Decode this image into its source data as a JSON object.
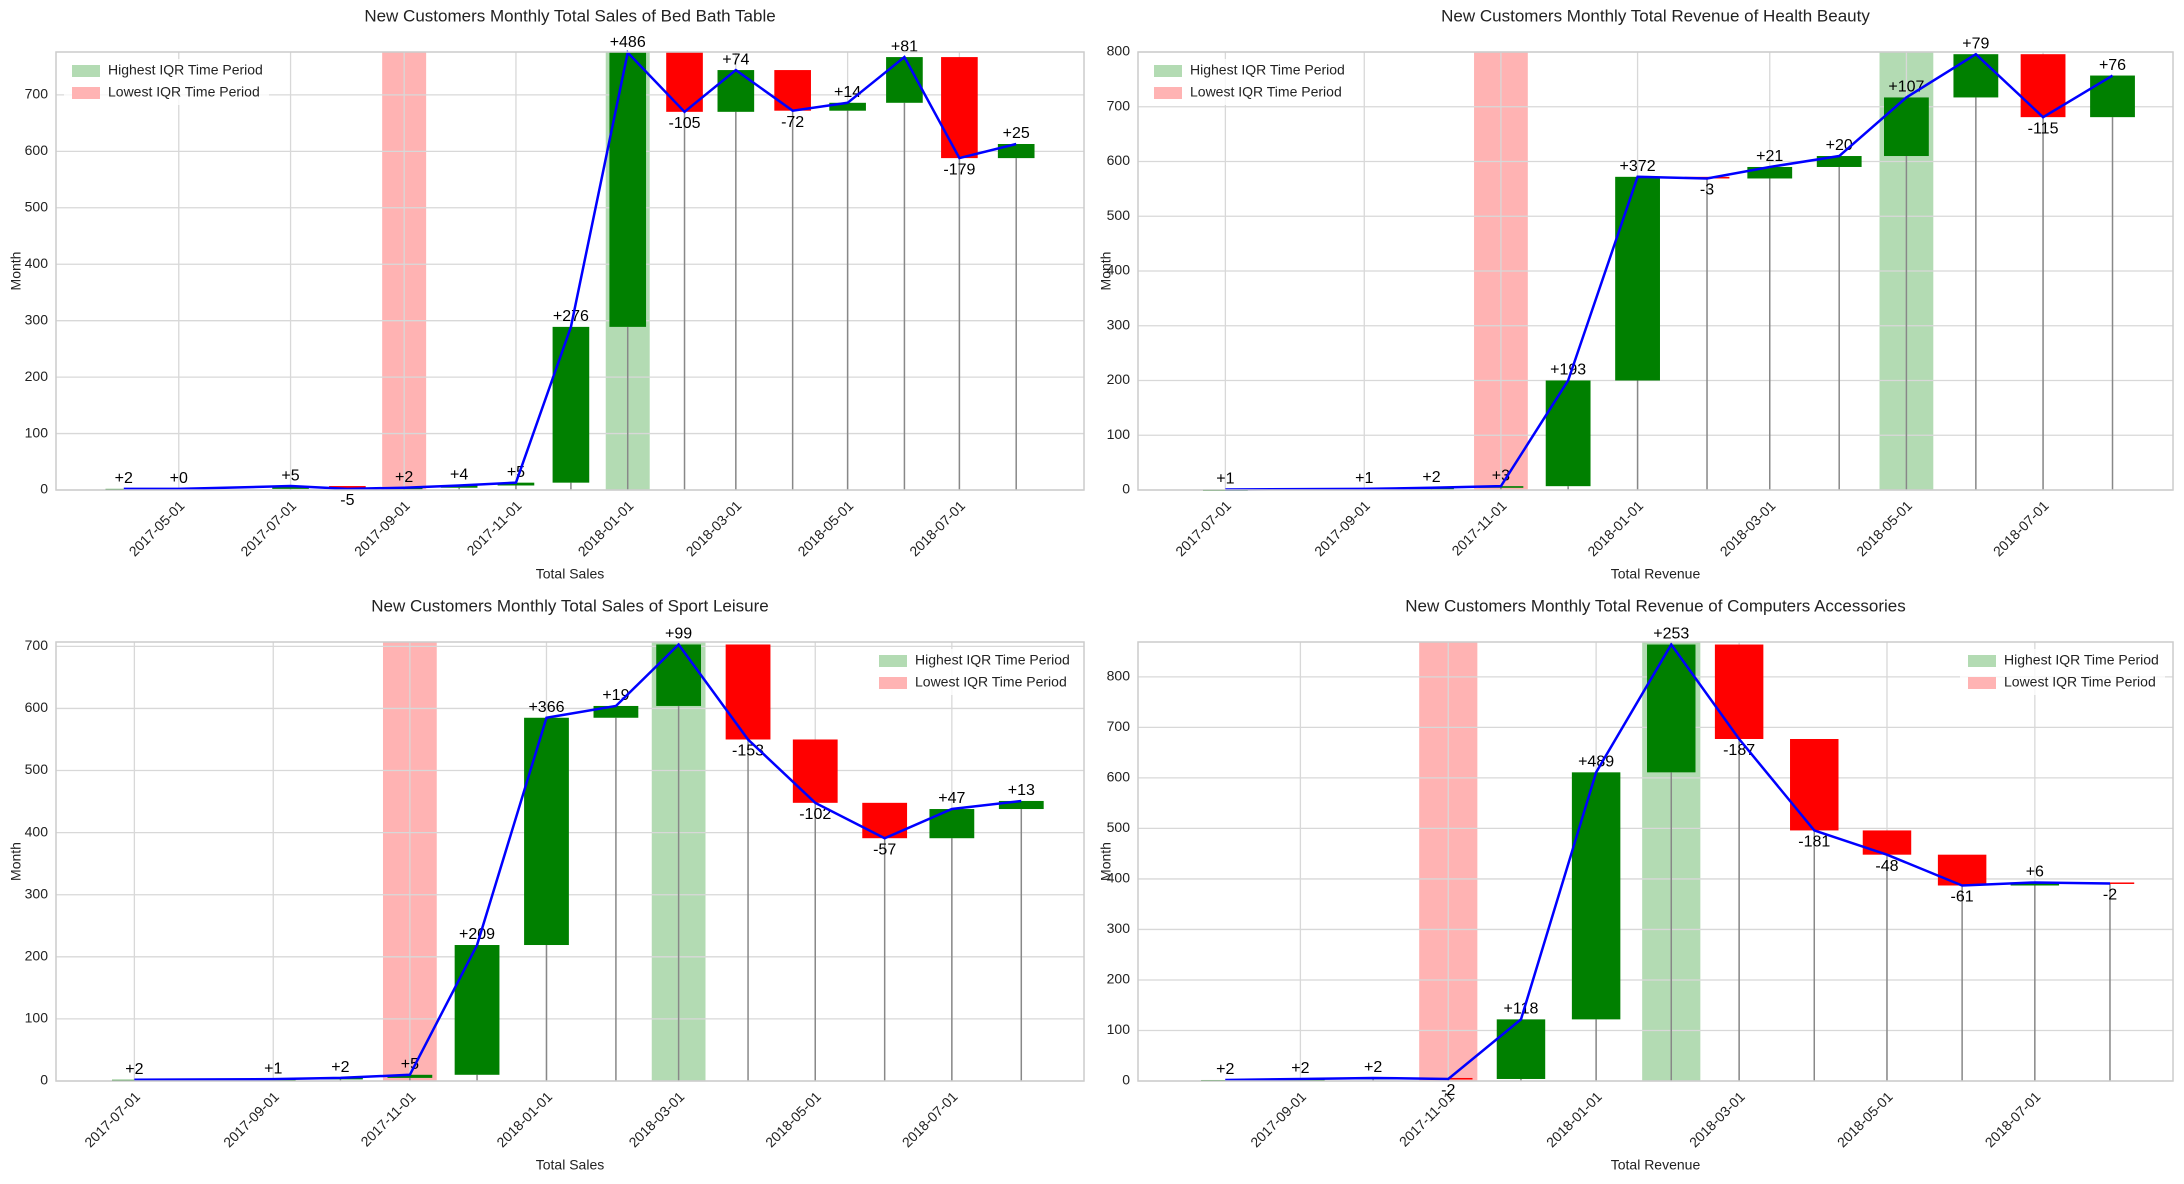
{
  "chart_data": [
    {
      "type": "waterfall",
      "title": "New Customers Monthly Total Sales of Bed Bath Table",
      "xlabel": "Total Sales",
      "ylabel": "Month",
      "x": [
        "2017-04-01",
        "2017-05-01",
        "2017-07-01",
        "2017-08-01",
        "2017-09-01",
        "2017-10-01",
        "2017-11-01",
        "2017-12-01",
        "2018-01-01",
        "2018-02-01",
        "2018-03-01",
        "2018-04-01",
        "2018-05-01",
        "2018-06-01",
        "2018-07-01",
        "2018-08-01"
      ],
      "values": [
        2,
        0,
        5,
        -5,
        2,
        4,
        5,
        276,
        486,
        -105,
        74,
        -72,
        14,
        81,
        -179,
        25
      ],
      "value_labels": [
        "+2",
        "+0",
        "+5",
        "-5",
        "+2",
        "+4",
        "+5",
        "+276",
        "+486",
        "-105",
        "+74",
        "-72",
        "+14",
        "+81",
        "-179",
        "+25"
      ],
      "xlim": [
        "2017-02-23",
        "2018-09-07"
      ],
      "ylim": [
        0,
        776
      ],
      "xticks": [
        "2017-05-01",
        "2017-07-01",
        "2017-09-01",
        "2017-11-01",
        "2018-01-01",
        "2018-03-01",
        "2018-05-01",
        "2018-07-01"
      ],
      "yticks": [
        0,
        100,
        200,
        300,
        400,
        500,
        600,
        700
      ],
      "increase_color": "#008000",
      "decrease_color": "#ff0000",
      "line_color": "#0000ff",
      "grid": true,
      "legend": "upper left",
      "highlights": [
        {
          "name": "Highest IQR Time Period",
          "color": "#b3dbb3",
          "x": "2018-01-01"
        },
        {
          "name": "Lowest IQR Time Period",
          "color": "#ffb3b3",
          "x": "2017-09-01"
        }
      ]
    },
    {
      "type": "waterfall",
      "title": "New Customers Monthly Total Revenue of Health Beauty",
      "xlabel": "Total Revenue",
      "ylabel": "Month",
      "x": [
        "2017-07-01",
        "2017-09-01",
        "2017-10-01",
        "2017-11-01",
        "2017-12-01",
        "2018-01-01",
        "2018-02-01",
        "2018-03-01",
        "2018-04-01",
        "2018-05-01",
        "2018-06-01",
        "2018-07-01",
        "2018-08-01"
      ],
      "values": [
        1,
        1,
        2,
        3,
        193,
        372,
        -3,
        21,
        20,
        107,
        79,
        -115,
        76
      ],
      "value_labels": [
        "+1",
        "+1",
        "+2",
        "+3",
        "+193",
        "+372",
        "-3",
        "+21",
        "+20",
        "+107",
        "+79",
        "-115",
        "+76"
      ],
      "xlim": [
        "2017-05-23",
        "2018-08-28"
      ],
      "ylim": [
        0,
        800
      ],
      "xticks": [
        "2017-07-01",
        "2017-09-01",
        "2017-11-01",
        "2018-01-01",
        "2018-03-01",
        "2018-05-01",
        "2018-07-01"
      ],
      "yticks": [
        0,
        100,
        200,
        300,
        400,
        500,
        600,
        700,
        800
      ],
      "increase_color": "#008000",
      "decrease_color": "#ff0000",
      "line_color": "#0000ff",
      "grid": true,
      "legend": "upper left",
      "highlights": [
        {
          "name": "Highest IQR Time Period",
          "color": "#b3dbb3",
          "x": "2018-05-01"
        },
        {
          "name": "Lowest IQR Time Period",
          "color": "#ffb3b3",
          "x": "2017-11-01"
        }
      ]
    },
    {
      "type": "waterfall",
      "title": "New Customers Monthly Total Sales of Sport Leisure",
      "xlabel": "Total Sales",
      "ylabel": "Month",
      "x": [
        "2017-07-01",
        "2017-09-01",
        "2017-10-01",
        "2017-11-01",
        "2017-12-01",
        "2018-01-01",
        "2018-02-01",
        "2018-03-01",
        "2018-04-01",
        "2018-05-01",
        "2018-06-01",
        "2018-07-01",
        "2018-08-01"
      ],
      "values": [
        2,
        1,
        2,
        5,
        209,
        366,
        19,
        99,
        -153,
        -102,
        -57,
        47,
        13
      ],
      "value_labels": [
        "+2",
        "+1",
        "+2",
        "+5",
        "+209",
        "+366",
        "+19",
        "+99",
        "-153",
        "-102",
        "-57",
        "+47",
        "+13"
      ],
      "xlim": [
        "2017-05-27",
        "2018-08-29"
      ],
      "ylim": [
        0,
        707
      ],
      "xticks": [
        "2017-07-01",
        "2017-09-01",
        "2017-11-01",
        "2018-01-01",
        "2018-03-01",
        "2018-05-01",
        "2018-07-01"
      ],
      "yticks": [
        0,
        100,
        200,
        300,
        400,
        500,
        600,
        700
      ],
      "increase_color": "#008000",
      "decrease_color": "#ff0000",
      "line_color": "#0000ff",
      "grid": true,
      "legend": "upper right",
      "highlights": [
        {
          "name": "Highest IQR Time Period",
          "color": "#b3dbb3",
          "x": "2018-03-01"
        },
        {
          "name": "Lowest IQR Time Period",
          "color": "#ffb3b3",
          "x": "2017-11-01"
        }
      ]
    },
    {
      "type": "waterfall",
      "title": "New Customers Monthly Total Revenue of Computers Accessories",
      "xlabel": "Total Revenue",
      "ylabel": "Month",
      "x": [
        "2017-08-01",
        "2017-09-01",
        "2017-10-01",
        "2017-11-01",
        "2017-12-01",
        "2018-01-01",
        "2018-02-01",
        "2018-03-01",
        "2018-04-01",
        "2018-05-01",
        "2018-06-01",
        "2018-07-01",
        "2018-08-01"
      ],
      "values": [
        2,
        2,
        2,
        -2,
        118,
        489,
        253,
        -187,
        -181,
        -48,
        -61,
        6,
        -2
      ],
      "value_labels": [
        "+2",
        "+2",
        "+2",
        "-2",
        "+118",
        "+489",
        "+253",
        "-187",
        "-181",
        "-48",
        "-61",
        "+6",
        "-2"
      ],
      "xlim": [
        "2017-06-26",
        "2018-08-27"
      ],
      "ylim": [
        0,
        869
      ],
      "xticks": [
        "2017-09-01",
        "2017-11-01",
        "2018-01-01",
        "2018-03-01",
        "2018-05-01",
        "2018-07-01"
      ],
      "yticks": [
        0,
        100,
        200,
        300,
        400,
        500,
        600,
        700,
        800
      ],
      "increase_color": "#008000",
      "decrease_color": "#ff0000",
      "line_color": "#0000ff",
      "grid": true,
      "legend": "upper right",
      "highlights": [
        {
          "name": "Highest IQR Time Period",
          "color": "#b3dbb3",
          "x": "2018-02-01"
        },
        {
          "name": "Lowest IQR Time Period",
          "color": "#ffb3b3",
          "x": "2017-11-01"
        }
      ]
    }
  ]
}
